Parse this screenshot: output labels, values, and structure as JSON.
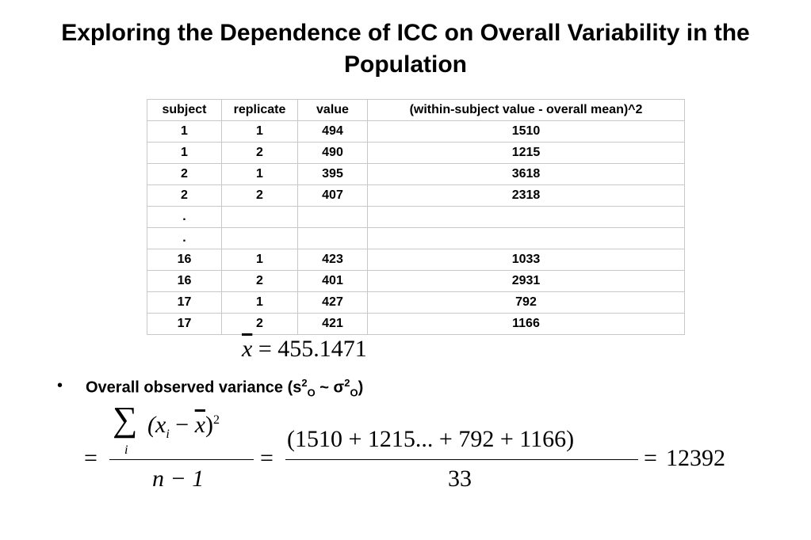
{
  "title": "Exploring the Dependence of ICC on Overall Variability in the Population",
  "table": {
    "header": [
      "subject",
      "replicate",
      "value",
      "(within-subject value - overall mean)^2"
    ],
    "rows": [
      [
        1,
        1,
        494,
        1510
      ],
      [
        1,
        2,
        490,
        1215
      ],
      [
        2,
        1,
        395,
        3618
      ],
      [
        2,
        2,
        407,
        2318
      ],
      [
        ".",
        null,
        null,
        null
      ],
      [
        ".",
        null,
        null,
        null
      ],
      [
        16,
        1,
        423,
        1033
      ],
      [
        16,
        2,
        401,
        2931
      ],
      [
        17,
        1,
        427,
        792
      ],
      [
        17,
        2,
        421,
        1166
      ]
    ]
  },
  "mean_formula": {
    "symbol": "x",
    "equals": "=",
    "value": "455.1471"
  },
  "bullet": {
    "prefix": "Overall observed variance (s",
    "sup1": "2",
    "sub1": "O",
    "mid": " ~ σ",
    "sup2": "2",
    "sub2": "O",
    "suffix": ")"
  },
  "variance_formula": {
    "equals1": "=",
    "sum": "∑",
    "sum_index": "i",
    "open": "(x",
    "x_sub": "i",
    "minus": " − ",
    "xbar": "x",
    "close": ")",
    "power": "2",
    "denominator": "n − 1",
    "equals2": "=",
    "numerator2": "(1510 + 1215... + 792 + 1166)",
    "denominator2": "33",
    "equals3": "=",
    "result": "12392"
  }
}
